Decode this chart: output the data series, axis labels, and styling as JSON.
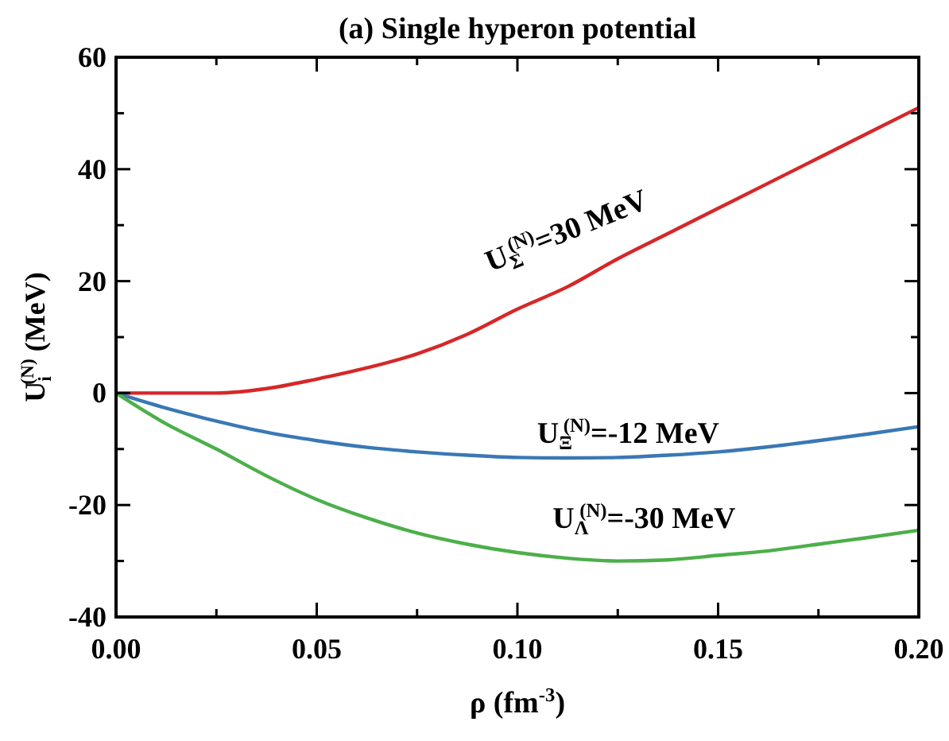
{
  "chart_data": {
    "type": "line",
    "title": "(a) Single hyperon potential",
    "xlabel": "ρ (fm$^{-3}$)",
    "ylabel": "U$_{i}$$^{(N)}$ (MeV)",
    "x": [
      0,
      0.0125,
      0.025,
      0.0375,
      0.05,
      0.0625,
      0.075,
      0.0875,
      0.1,
      0.1125,
      0.125,
      0.1375,
      0.15,
      0.1625,
      0.175,
      0.1875,
      0.2
    ],
    "series": [
      {
        "name": "U$_{Σ}$$^{(N)}$=30 MeV",
        "color": "#d62728",
        "values": [
          0,
          0,
          0,
          0.8,
          2.5,
          4.5,
          7,
          10.5,
          15,
          19,
          24,
          28.5,
          33,
          37.5,
          42,
          46.5,
          51
        ]
      },
      {
        "name": "U$_{Ξ}$$^{(N)}$=-12 MeV",
        "color": "#3a78b5",
        "values": [
          0,
          -2.7,
          -5,
          -7,
          -8.5,
          -9.7,
          -10.5,
          -11.1,
          -11.5,
          -11.6,
          -11.5,
          -11.1,
          -10.5,
          -9.6,
          -8.5,
          -7.3,
          -6
        ]
      },
      {
        "name": "U$_{Λ}$$^{(N)}$=-30 MeV",
        "color": "#4daf4a",
        "values": [
          0,
          -5.5,
          -10,
          -14.8,
          -19,
          -22.3,
          -25,
          -27,
          -28.5,
          -29.5,
          -30,
          -29.8,
          -29,
          -28.2,
          -27,
          -25.8,
          -24.5
        ]
      }
    ],
    "xlim": [
      0,
      0.2
    ],
    "ylim": [
      -40,
      60
    ],
    "xticks": [
      {
        "value": 0,
        "label": "0.00"
      },
      {
        "value": 0.025,
        "label": null
      },
      {
        "value": 0.05,
        "label": "0.05"
      },
      {
        "value": 0.075,
        "label": null
      },
      {
        "value": 0.1,
        "label": "0.10"
      },
      {
        "value": 0.125,
        "label": null
      },
      {
        "value": 0.15,
        "label": "0.15"
      },
      {
        "value": 0.175,
        "label": null
      },
      {
        "value": 0.2,
        "label": "0.20"
      }
    ],
    "yticks": [
      -40,
      {
        "value": -30,
        "label": null
      },
      -20,
      {
        "value": -10,
        "label": null
      },
      0,
      {
        "value": 10,
        "label": null
      },
      20,
      {
        "value": 30,
        "label": null
      },
      40,
      {
        "value": 50,
        "label": null
      },
      60
    ],
    "grid": false,
    "marker": "none",
    "line_style": "solid"
  }
}
